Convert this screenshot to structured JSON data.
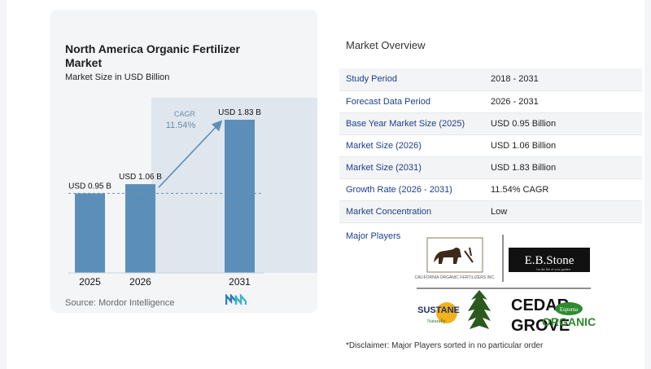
{
  "card": {
    "title": "North America Organic Fertilizer Market",
    "subtitle": "Market Size in USD Billion",
    "source": "Source:  Mordor Intelligence"
  },
  "chart_data": {
    "type": "bar",
    "categories": [
      "2025",
      "2026",
      "2031"
    ],
    "values": [
      0.95,
      1.06,
      1.83
    ],
    "data_labels": [
      "USD 0.95 B",
      "USD 1.06 B",
      "USD 1.83 B"
    ],
    "cagr_label": "CAGR",
    "cagr_value": "11.54%",
    "bar_color": "#5b8fba",
    "ylim": [
      0,
      1.83
    ]
  },
  "overview": {
    "title": "Market Overview",
    "rows": [
      {
        "label": "Study Period",
        "value": "2018 - 2031"
      },
      {
        "label": "Forecast Data Period",
        "value": "2026 - 2031"
      },
      {
        "label": "Base Year Market Size (2025)",
        "value": "USD 0.95 Billion"
      },
      {
        "label": "Market Size (2026)",
        "value": "USD 1.06 Billion"
      },
      {
        "label": "Market Size (2031)",
        "value": "USD 1.83 Billion"
      },
      {
        "label": "Growth Rate (2026 - 2031)",
        "value": "11.54% CAGR"
      },
      {
        "label": "Market Concentration",
        "value": "Low"
      }
    ]
  },
  "players": {
    "label": "Major Players",
    "logos": {
      "cof": "CALIFORNIA ORGANIC FERTILIZERS INC.",
      "ebstone": "E.B.Stone",
      "ebstone_tag": "for the life of your garden",
      "sustane": "SUSTANE",
      "sustane_tag": "Naturally",
      "cedar1": "CEDAR",
      "cedar2": "GROVE",
      "espoma_brand": "Espoma",
      "espoma": "ORGANIC"
    },
    "disclaimer": "*Disclaimer: Major Players sorted in no particular order"
  }
}
